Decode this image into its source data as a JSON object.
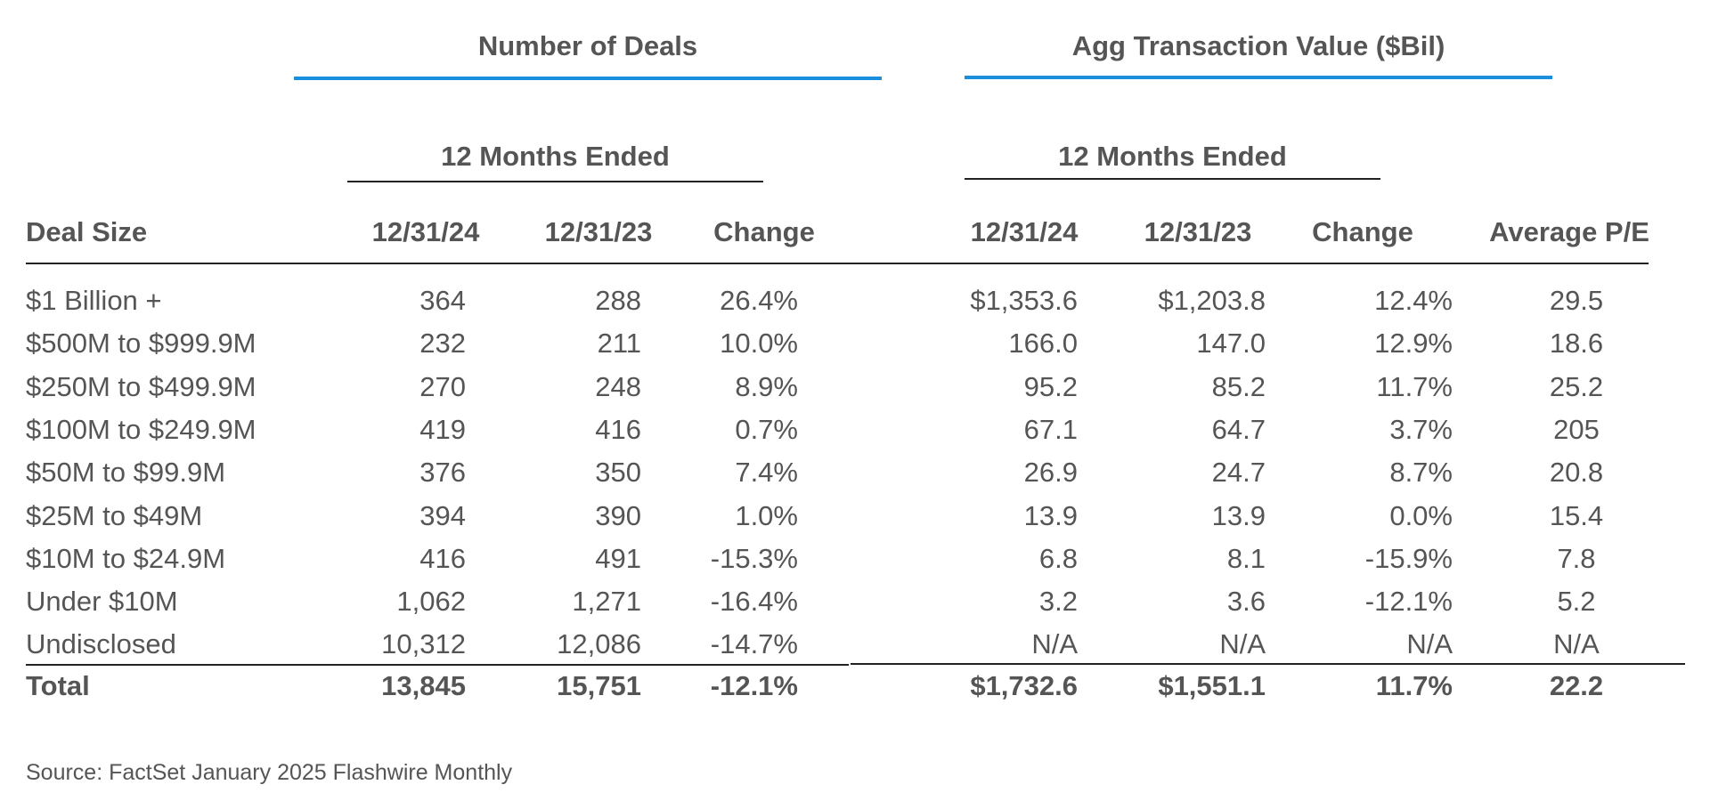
{
  "groups": {
    "deals": {
      "title": "Number of Deals",
      "period": "12 Months Ended"
    },
    "value": {
      "title": "Agg Transaction Value ($Bil)",
      "period": "12 Months Ended"
    }
  },
  "columns": {
    "deal_size": "Deal Size",
    "deals_2024": "12/31/24",
    "deals_2023": "12/31/23",
    "deals_change": "Change",
    "value_2024": "12/31/24",
    "value_2023": "12/31/23",
    "value_change": "Change",
    "avg_pe": "Average P/E"
  },
  "rows": [
    {
      "size": "$1 Billion +",
      "deals_2024": "364",
      "deals_2023": "288",
      "deals_change": "26.4%",
      "value_2024": "$1,353.6",
      "value_2023": "$1,203.8",
      "value_change": "12.4%",
      "avg_pe": "29.5"
    },
    {
      "size": "$500M to $999.9M",
      "deals_2024": "232",
      "deals_2023": "211",
      "deals_change": "10.0%",
      "value_2024": "166.0",
      "value_2023": "147.0",
      "value_change": "12.9%",
      "avg_pe": "18.6"
    },
    {
      "size": "$250M to $499.9M",
      "deals_2024": "270",
      "deals_2023": "248",
      "deals_change": "8.9%",
      "value_2024": "95.2",
      "value_2023": "85.2",
      "value_change": "11.7%",
      "avg_pe": "25.2"
    },
    {
      "size": "$100M to $249.9M",
      "deals_2024": "419",
      "deals_2023": "416",
      "deals_change": "0.7%",
      "value_2024": "67.1",
      "value_2023": "64.7",
      "value_change": "3.7%",
      "avg_pe": "205"
    },
    {
      "size": "$50M to $99.9M",
      "deals_2024": "376",
      "deals_2023": "350",
      "deals_change": "7.4%",
      "value_2024": "26.9",
      "value_2023": "24.7",
      "value_change": "8.7%",
      "avg_pe": "20.8"
    },
    {
      "size": "$25M to $49M",
      "deals_2024": "394",
      "deals_2023": "390",
      "deals_change": "1.0%",
      "value_2024": "13.9",
      "value_2023": "13.9",
      "value_change": "0.0%",
      "avg_pe": "15.4"
    },
    {
      "size": "$10M to $24.9M",
      "deals_2024": "416",
      "deals_2023": "491",
      "deals_change": "-15.3%",
      "value_2024": "6.8",
      "value_2023": "8.1",
      "value_change": "-15.9%",
      "avg_pe": "7.8"
    },
    {
      "size": "Under $10M",
      "deals_2024": "1,062",
      "deals_2023": "1,271",
      "deals_change": "-16.4%",
      "value_2024": "3.2",
      "value_2023": "3.6",
      "value_change": "-12.1%",
      "avg_pe": "5.2"
    },
    {
      "size": "Undisclosed",
      "deals_2024": "10,312",
      "deals_2023": "12,086",
      "deals_change": "-14.7%",
      "value_2024": "N/A",
      "value_2023": "N/A",
      "value_change": "N/A",
      "avg_pe": "N/A"
    }
  ],
  "total": {
    "size": "Total",
    "deals_2024": "13,845",
    "deals_2023": "15,751",
    "deals_change": "-12.1%",
    "value_2024": "$1,732.6",
    "value_2023": "$1,551.1",
    "value_change": "11.7%",
    "avg_pe": "22.2"
  },
  "source": "Source: FactSet January 2025 Flashwire Monthly",
  "colors": {
    "accent_rule": "#1a8fdb",
    "text": "#555555",
    "rule": "#222222"
  }
}
